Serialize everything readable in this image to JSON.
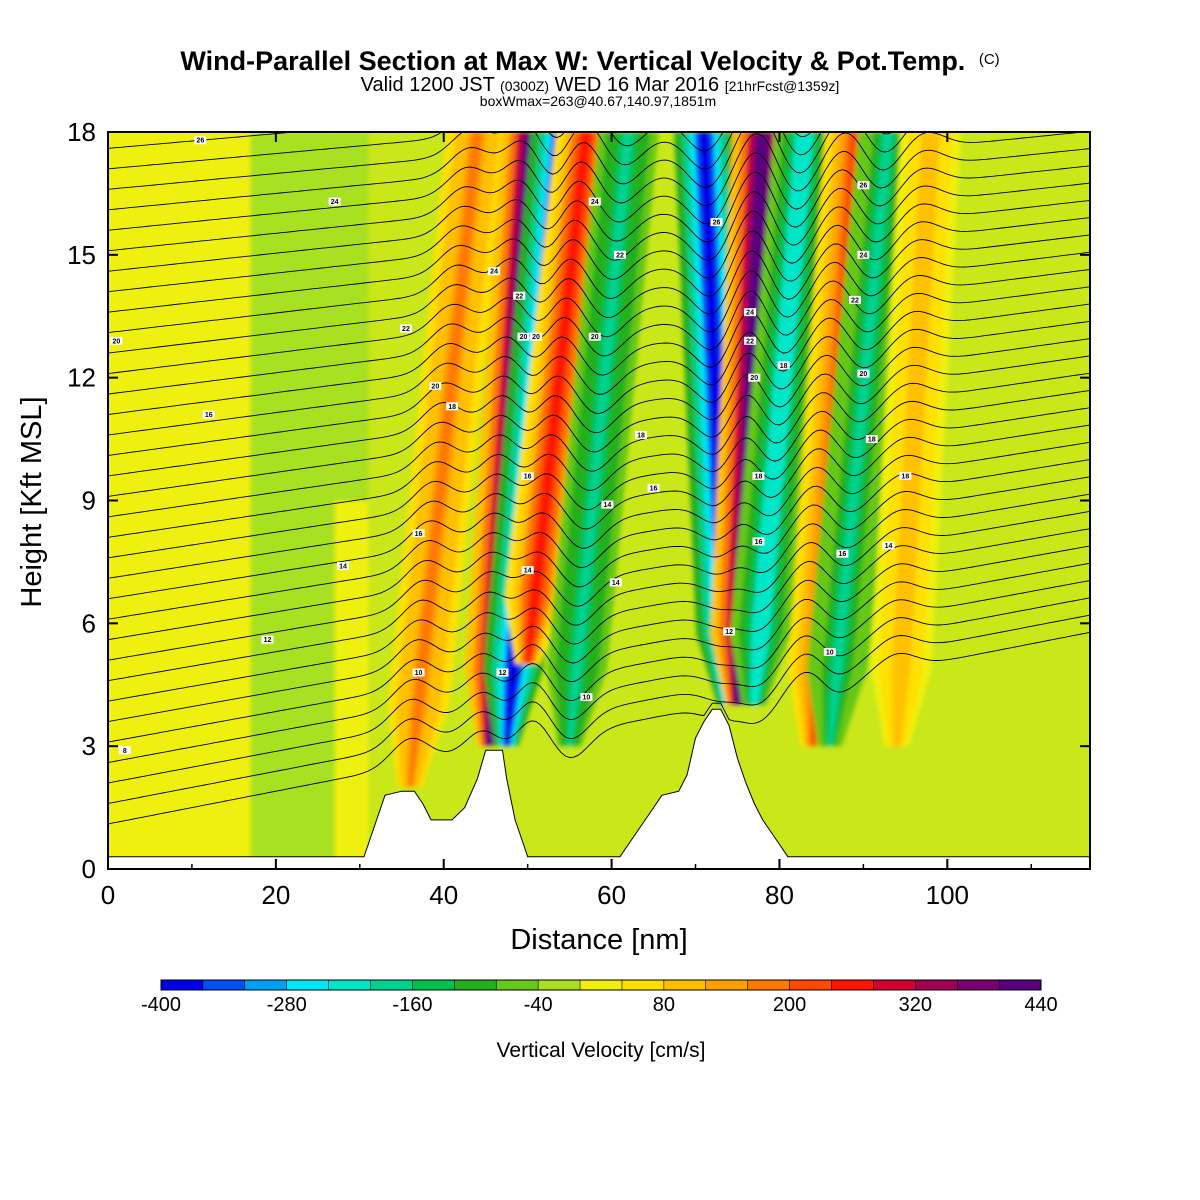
{
  "header": {
    "title": "Wind-Parallel Section at Max W: Vertical Velocity & Pot.Temp.",
    "title_tag": "(C)",
    "valid_prefix": "Valid 1200 JST",
    "valid_utc": "(0300Z)",
    "valid_date": "WED 16 Mar 2016",
    "forecast": "[21hrFcst@1359z]",
    "box_info": "boxWmax=263@40.67,140.97,1851m"
  },
  "chart_data": {
    "type": "heatmap",
    "title": "Wind-Parallel Section at Max W: Vertical Velocity & Pot.Temp.",
    "xlabel": "Distance [nm]",
    "ylabel": "Height [Kft MSL]",
    "xlim": [
      0,
      117
    ],
    "ylim": [
      0,
      18
    ],
    "xticks": [
      0,
      20,
      40,
      60,
      80,
      100
    ],
    "yticks": [
      0,
      3,
      6,
      9,
      12,
      15,
      18
    ],
    "colorbar": {
      "label": "Vertical Velocity [cm/s]",
      "min": -400,
      "max": 440,
      "step": 40,
      "tick_labels": [
        "-400",
        "-280",
        "-160",
        "-40",
        "80",
        "200",
        "320",
        "440"
      ],
      "colors": [
        "#0000e8",
        "#0050f5",
        "#00a0f5",
        "#00e6f5",
        "#00e6c8",
        "#00d290",
        "#00c04e",
        "#22b01c",
        "#66c818",
        "#a8e020",
        "#f0f010",
        "#ffe000",
        "#ffc000",
        "#ffa000",
        "#ff7800",
        "#ff4800",
        "#ff1400",
        "#d00030",
        "#a00050",
        "#7a0070",
        "#580080"
      ]
    },
    "terrain_kft": [
      [
        0,
        0.3
      ],
      [
        30.5,
        0.3
      ],
      [
        31,
        0.6
      ],
      [
        32,
        1.2
      ],
      [
        33,
        1.8
      ],
      [
        35,
        1.9
      ],
      [
        36.5,
        1.9
      ],
      [
        37.5,
        1.6
      ],
      [
        38.5,
        1.2
      ],
      [
        41,
        1.2
      ],
      [
        42.5,
        1.5
      ],
      [
        44,
        2.2
      ],
      [
        45,
        2.9
      ],
      [
        47,
        2.9
      ],
      [
        47.5,
        2.2
      ],
      [
        48.5,
        1.2
      ],
      [
        49.5,
        0.6
      ],
      [
        50,
        0.3
      ],
      [
        61,
        0.3
      ],
      [
        62,
        0.6
      ],
      [
        63,
        0.9
      ],
      [
        64,
        1.2
      ],
      [
        65,
        1.5
      ],
      [
        66,
        1.8
      ],
      [
        68,
        1.9
      ],
      [
        69,
        2.3
      ],
      [
        70,
        3.2
      ],
      [
        71,
        3.6
      ],
      [
        72,
        3.9
      ],
      [
        73,
        3.9
      ],
      [
        74,
        3.5
      ],
      [
        75,
        2.7
      ],
      [
        76,
        2.1
      ],
      [
        77,
        1.6
      ],
      [
        78,
        1.2
      ],
      [
        79,
        0.9
      ],
      [
        80,
        0.6
      ],
      [
        81,
        0.3
      ],
      [
        117,
        0.3
      ]
    ],
    "updrafts": [
      {
        "center_base": [
          36,
          2
        ],
        "center_top": [
          44,
          18
        ],
        "amplitude": 180
      },
      {
        "center_base": [
          45.5,
          3
        ],
        "center_top": [
          50.5,
          18
        ],
        "amplitude": 440
      },
      {
        "center_base": [
          47.5,
          3
        ],
        "center_top": [
          54,
          18
        ],
        "amplitude": -400
      },
      {
        "center_base": [
          50,
          5
        ],
        "center_top": [
          57,
          18
        ],
        "amplitude": 260
      },
      {
        "center_base": [
          55,
          3
        ],
        "center_top": [
          62,
          18
        ],
        "amplitude": -180
      },
      {
        "center_base": [
          74,
          4
        ],
        "center_top": [
          71,
          18
        ],
        "amplitude": -380
      },
      {
        "center_base": [
          75,
          4
        ],
        "center_top": [
          78,
          18
        ],
        "amplitude": 440
      },
      {
        "center_base": [
          77,
          4
        ],
        "center_top": [
          83,
          18
        ],
        "amplitude": -240
      },
      {
        "center_base": [
          84,
          3
        ],
        "center_top": [
          89,
          18
        ],
        "amplitude": 200
      },
      {
        "center_base": [
          86,
          3
        ],
        "center_top": [
          93,
          18
        ],
        "amplitude": -170
      },
      {
        "center_base": [
          94,
          3
        ],
        "center_top": [
          98,
          18
        ],
        "amplitude": 110
      }
    ],
    "contour_labels": [
      {
        "text": "26",
        "x": 11,
        "y": 17.8
      },
      {
        "text": "24",
        "x": 27,
        "y": 16.3
      },
      {
        "text": "20",
        "x": 1,
        "y": 12.9
      },
      {
        "text": "16",
        "x": 12,
        "y": 11.1
      },
      {
        "text": "14",
        "x": 28,
        "y": 7.4
      },
      {
        "text": "12",
        "x": 19,
        "y": 5.6
      },
      {
        "text": "8",
        "x": 2,
        "y": 2.9
      },
      {
        "text": "22",
        "x": 35.5,
        "y": 13.2
      },
      {
        "text": "20",
        "x": 39,
        "y": 11.8
      },
      {
        "text": "18",
        "x": 41,
        "y": 11.3
      },
      {
        "text": "16",
        "x": 37,
        "y": 8.2
      },
      {
        "text": "10",
        "x": 37,
        "y": 4.8
      },
      {
        "text": "24",
        "x": 46,
        "y": 14.6
      },
      {
        "text": "22",
        "x": 49,
        "y": 14
      },
      {
        "text": "20",
        "x": 49.5,
        "y": 13
      },
      {
        "text": "20",
        "x": 51,
        "y": 13
      },
      {
        "text": "16",
        "x": 50,
        "y": 9.6
      },
      {
        "text": "14",
        "x": 50,
        "y": 7.3
      },
      {
        "text": "12",
        "x": 47,
        "y": 4.8
      },
      {
        "text": "24",
        "x": 58,
        "y": 16.3
      },
      {
        "text": "22",
        "x": 61,
        "y": 15
      },
      {
        "text": "20",
        "x": 58,
        "y": 13
      },
      {
        "text": "18",
        "x": 63.5,
        "y": 10.6
      },
      {
        "text": "16",
        "x": 65,
        "y": 9.3
      },
      {
        "text": "14",
        "x": 59.5,
        "y": 8.9
      },
      {
        "text": "14",
        "x": 60.5,
        "y": 7
      },
      {
        "text": "10",
        "x": 57,
        "y": 4.2
      },
      {
        "text": "26",
        "x": 72.5,
        "y": 15.8
      },
      {
        "text": "24",
        "x": 76.5,
        "y": 13.6
      },
      {
        "text": "22",
        "x": 76.5,
        "y": 12.9
      },
      {
        "text": "20",
        "x": 77,
        "y": 12
      },
      {
        "text": "18",
        "x": 77.5,
        "y": 9.6
      },
      {
        "text": "16",
        "x": 77.5,
        "y": 8
      },
      {
        "text": "18",
        "x": 80.5,
        "y": 12.3
      },
      {
        "text": "12",
        "x": 74,
        "y": 5.8
      },
      {
        "text": "26",
        "x": 90,
        "y": 16.7
      },
      {
        "text": "24",
        "x": 90,
        "y": 15
      },
      {
        "text": "22",
        "x": 89,
        "y": 13.9
      },
      {
        "text": "20",
        "x": 90,
        "y": 12.1
      },
      {
        "text": "18",
        "x": 91,
        "y": 10.5
      },
      {
        "text": "18",
        "x": 95,
        "y": 9.6
      },
      {
        "text": "16",
        "x": 87.5,
        "y": 7.7
      },
      {
        "text": "14",
        "x": 93,
        "y": 7.9
      },
      {
        "text": "10",
        "x": 86,
        "y": 5.3
      }
    ]
  }
}
